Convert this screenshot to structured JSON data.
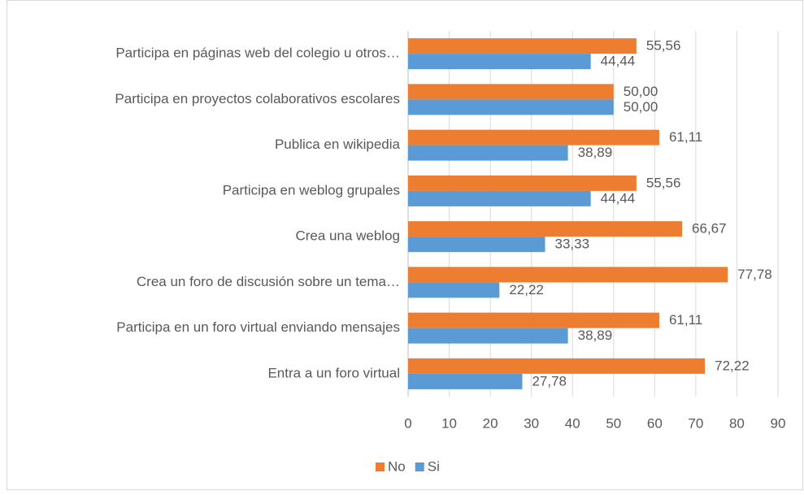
{
  "chart_data": {
    "type": "barh",
    "categories": [
      "Participa en páginas web del colegio u otros…",
      "Participa en proyectos colaborativos escolares",
      "Publica en wikipedia",
      "Participa en weblog grupales",
      "Crea una weblog",
      "Crea un foro de discusión sobre un tema…",
      "Participa en un foro virtual enviando mensajes",
      "Entra a un foro virtual"
    ],
    "series": [
      {
        "name": "No",
        "color": "#ed7d31",
        "values": [
          55.56,
          50.0,
          61.11,
          55.56,
          66.67,
          77.78,
          61.11,
          72.22
        ],
        "value_labels": [
          "55,56",
          "50,00",
          "61,11",
          "55,56",
          "66,67",
          "77,78",
          "61,11",
          "72,22"
        ]
      },
      {
        "name": "Si",
        "color": "#5b9bd5",
        "values": [
          44.44,
          50.0,
          38.89,
          44.44,
          33.33,
          22.22,
          38.89,
          27.78
        ],
        "value_labels": [
          "44,44",
          "50,00",
          "38,89",
          "44,44",
          "33,33",
          "22,22",
          "38,89",
          "27,78"
        ]
      }
    ],
    "xlim": [
      0,
      90
    ],
    "xticks": [
      0,
      10,
      20,
      30,
      40,
      50,
      60,
      70,
      80,
      90
    ],
    "grid": true,
    "legend": "bottom"
  }
}
